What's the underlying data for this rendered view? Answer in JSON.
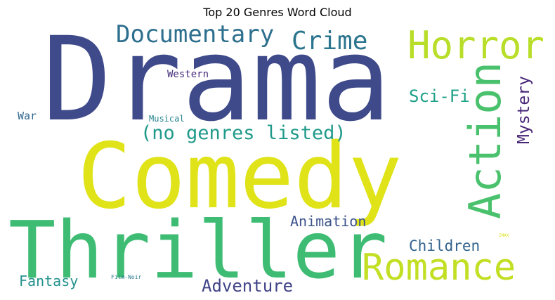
{
  "title": "Top 20 Genres Word Cloud",
  "words": [
    {
      "text": "Drama",
      "color": "#3f4a8a",
      "rotate": false
    },
    {
      "text": "Comedy",
      "color": "#dfe318",
      "rotate": false
    },
    {
      "text": "Thriller",
      "color": "#3fbc73",
      "rotate": false
    },
    {
      "text": "Romance",
      "color": "#c2df23",
      "rotate": false
    },
    {
      "text": "Action",
      "color": "#4ac16d",
      "rotate": true
    },
    {
      "text": "Horror",
      "color": "#b8de29",
      "rotate": false
    },
    {
      "text": "Documentary",
      "color": "#2e6f8e",
      "rotate": false
    },
    {
      "text": "Crime",
      "color": "#2b758e",
      "rotate": false
    },
    {
      "text": "(no genres listed)",
      "color": "#1f9a8a",
      "rotate": false
    },
    {
      "text": "Adventure",
      "color": "#414487",
      "rotate": false
    },
    {
      "text": "Mystery",
      "color": "#482677",
      "rotate": true
    },
    {
      "text": "Sci-Fi",
      "color": "#1fa187",
      "rotate": false
    },
    {
      "text": "Animation",
      "color": "#3b528b",
      "rotate": false
    },
    {
      "text": "Children",
      "color": "#33638d",
      "rotate": false
    },
    {
      "text": "Fantasy",
      "color": "#21918c",
      "rotate": false
    },
    {
      "text": "Western",
      "color": "#472d7b",
      "rotate": false
    },
    {
      "text": "War",
      "color": "#31688e",
      "rotate": false
    },
    {
      "text": "Musical",
      "color": "#25848e",
      "rotate": false
    },
    {
      "text": "Film-Noir",
      "color": "#2a788e",
      "rotate": false
    },
    {
      "text": "IMAX",
      "color": "#d8e219",
      "rotate": false
    }
  ]
}
